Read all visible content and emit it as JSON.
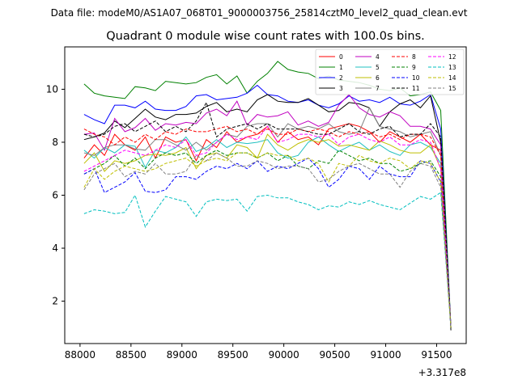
{
  "header": {
    "suptitle": "Data file: modeM0/AS1A07_068T01_9000003756_25814cztM0_level2_quad_clean.evt"
  },
  "chart_data": {
    "type": "line",
    "title": "Quadrant 0 module wise count rates with 100.0s bins.",
    "xlabel": "",
    "ylabel": "",
    "x_offset_label": "+3.317e8",
    "xlim": [
      87850,
      91790
    ],
    "ylim": [
      0.4,
      11.6
    ],
    "xticks": [
      88000,
      88500,
      89000,
      89500,
      90000,
      90500,
      91000,
      91500
    ],
    "xtick_labels": [
      "88000",
      "88500",
      "89000",
      "89500",
      "90000",
      "90500",
      "91000",
      "91500"
    ],
    "yticks": [
      2,
      4,
      6,
      8,
      10
    ],
    "ytick_labels": [
      "2",
      "4",
      "6",
      "8",
      "10"
    ],
    "grid": false,
    "legend_placement": "top-right",
    "x": [
      88040,
      88140,
      88240,
      88340,
      88440,
      88540,
      88640,
      88740,
      88840,
      88940,
      89040,
      89140,
      89240,
      89340,
      89440,
      89540,
      89640,
      89740,
      89840,
      89940,
      90040,
      90140,
      90240,
      90340,
      90440,
      90540,
      90640,
      90740,
      90840,
      90940,
      91040,
      91140,
      91240,
      91340,
      91440,
      91540,
      91640
    ],
    "series": [
      {
        "name": "0",
        "color": "#ff0000",
        "dash": "solid",
        "values": [
          7.4,
          7.9,
          7.5,
          8.3,
          7.9,
          7.7,
          8.2,
          7.4,
          8.2,
          8.0,
          8.1,
          7.3,
          8.1,
          7.8,
          8.4,
          8.0,
          8.2,
          8.3,
          8.6,
          8.0,
          8.4,
          8.1,
          8.2,
          7.9,
          8.5,
          8.6,
          8.7,
          8.6,
          8.4,
          8.0,
          8.4,
          8.2,
          8.0,
          8.3,
          7.9,
          7.7,
          1.0
        ]
      },
      {
        "name": "1",
        "color": "#008000",
        "dash": "solid",
        "values": [
          10.2,
          9.85,
          9.75,
          9.7,
          9.65,
          10.1,
          10.05,
          9.95,
          10.3,
          10.25,
          10.2,
          10.25,
          10.45,
          10.55,
          10.2,
          10.5,
          9.85,
          10.3,
          10.6,
          11.05,
          10.75,
          10.65,
          10.6,
          10.4,
          10.5,
          10.35,
          10.3,
          10.25,
          10.15,
          10.0,
          9.95,
          10.05,
          9.75,
          9.8,
          9.9,
          9.2,
          1.0
        ]
      },
      {
        "name": "2",
        "color": "#0000ff",
        "dash": "solid",
        "values": [
          9.05,
          8.85,
          8.7,
          9.4,
          9.4,
          9.3,
          9.55,
          9.25,
          9.2,
          9.2,
          9.35,
          9.75,
          9.8,
          9.6,
          9.65,
          9.7,
          9.85,
          10.15,
          9.8,
          9.75,
          9.55,
          9.5,
          9.6,
          9.4,
          9.3,
          9.45,
          9.75,
          9.55,
          9.6,
          9.5,
          9.7,
          9.45,
          9.4,
          9.55,
          9.8,
          8.5,
          1.0
        ]
      },
      {
        "name": "3",
        "color": "#000000",
        "dash": "solid",
        "values": [
          8.1,
          8.2,
          8.35,
          8.8,
          8.55,
          8.9,
          9.25,
          8.95,
          8.85,
          9.05,
          9.05,
          9.1,
          9.35,
          9.5,
          9.15,
          9.25,
          9.15,
          9.6,
          9.8,
          9.55,
          9.5,
          9.5,
          9.65,
          9.4,
          9.15,
          9.2,
          9.5,
          9.45,
          9.3,
          8.6,
          9.15,
          9.45,
          9.6,
          9.3,
          9.75,
          8.0,
          0.9
        ]
      },
      {
        "name": "4",
        "color": "#c000c0",
        "dash": "solid",
        "values": [
          8.3,
          8.35,
          7.7,
          8.9,
          8.4,
          8.55,
          8.9,
          8.45,
          8.7,
          8.65,
          8.75,
          8.7,
          9.1,
          9.25,
          9.0,
          9.55,
          8.65,
          9.05,
          8.95,
          9.0,
          9.15,
          8.65,
          8.8,
          8.6,
          8.75,
          9.4,
          9.8,
          9.3,
          9.05,
          8.95,
          9.15,
          9.0,
          8.6,
          8.6,
          8.5,
          7.9,
          1.0
        ]
      },
      {
        "name": "5",
        "color": "#20c0c0",
        "dash": "solid",
        "values": [
          7.7,
          7.4,
          7.8,
          7.6,
          7.9,
          7.85,
          7.05,
          7.7,
          7.6,
          7.8,
          8.2,
          7.65,
          7.8,
          8.1,
          7.8,
          8.0,
          7.95,
          8.0,
          8.1,
          7.6,
          7.4,
          7.5,
          8.0,
          8.2,
          7.9,
          7.65,
          7.85,
          8.0,
          7.7,
          7.9,
          7.65,
          7.5,
          7.9,
          8.0,
          7.8,
          7.2,
          1.0
        ]
      },
      {
        "name": "6",
        "color": "#bfbf00",
        "dash": "solid",
        "values": [
          7.2,
          7.6,
          6.9,
          7.3,
          7.2,
          7.3,
          7.5,
          7.55,
          7.5,
          7.6,
          7.8,
          7.0,
          7.5,
          7.6,
          7.4,
          7.9,
          7.8,
          7.4,
          8.3,
          7.9,
          7.7,
          7.95,
          8.1,
          8.0,
          8.1,
          7.85,
          7.9,
          7.8,
          7.7,
          8.05,
          7.9,
          7.7,
          7.6,
          7.6,
          7.9,
          7.0,
          1.0
        ]
      },
      {
        "name": "7",
        "color": "#808080",
        "dash": "solid",
        "values": [
          7.6,
          7.5,
          7.8,
          7.9,
          7.9,
          7.75,
          7.7,
          8.1,
          8.1,
          7.9,
          7.7,
          8.0,
          7.7,
          8.0,
          8.3,
          8.2,
          8.6,
          8.7,
          8.7,
          8.2,
          8.7,
          8.5,
          8.6,
          8.5,
          8.7,
          8.4,
          8.3,
          8.4,
          9.3,
          8.6,
          8.5,
          8.4,
          8.2,
          8.3,
          8.4,
          7.5,
          1.0
        ]
      },
      {
        "name": "8",
        "color": "#ff0000",
        "dash": "dashed",
        "values": [
          8.5,
          8.3,
          8.2,
          7.9,
          8.2,
          8.0,
          8.3,
          8.1,
          8.4,
          8.3,
          8.5,
          8.4,
          8.4,
          8.5,
          8.6,
          8.4,
          8.5,
          8.3,
          8.5,
          8.3,
          8.3,
          8.5,
          8.4,
          8.5,
          8.4,
          8.2,
          8.4,
          8.3,
          8.4,
          8.2,
          8.3,
          8.1,
          8.3,
          8.3,
          8.2,
          7.5,
          1.0
        ]
      },
      {
        "name": "9",
        "color": "#008000",
        "dash": "dashed",
        "values": [
          6.8,
          7.0,
          7.2,
          7.5,
          7.1,
          7.4,
          7.0,
          7.4,
          7.6,
          7.5,
          7.6,
          7.2,
          7.5,
          7.7,
          7.5,
          7.6,
          7.6,
          7.4,
          7.6,
          7.3,
          7.5,
          7.1,
          7.0,
          7.3,
          7.2,
          7.7,
          7.5,
          7.3,
          7.4,
          7.2,
          7.2,
          6.9,
          7.0,
          7.2,
          7.3,
          6.7,
          1.0
        ]
      },
      {
        "name": "10",
        "color": "#0000ff",
        "dash": "dashed",
        "values": [
          6.8,
          7.0,
          6.1,
          6.3,
          6.5,
          6.85,
          6.15,
          6.1,
          6.2,
          6.7,
          6.7,
          6.6,
          6.9,
          7.1,
          7.0,
          7.2,
          7.0,
          7.3,
          6.9,
          7.1,
          7.0,
          7.2,
          7.4,
          7.0,
          6.3,
          6.6,
          7.1,
          7.0,
          6.6,
          7.1,
          6.8,
          6.7,
          6.7,
          7.3,
          7.2,
          6.5,
          1.0
        ]
      },
      {
        "name": "11",
        "color": "#000000",
        "dash": "dashed",
        "values": [
          8.3,
          8.2,
          8.3,
          8.6,
          8.7,
          8.4,
          8.6,
          8.8,
          8.4,
          8.6,
          8.4,
          8.8,
          9.5,
          8.2,
          8.5,
          8.6,
          8.7,
          8.5,
          8.7,
          8.5,
          8.5,
          8.5,
          8.4,
          8.3,
          8.3,
          8.5,
          8.7,
          8.4,
          8.3,
          8.5,
          8.6,
          8.2,
          8.3,
          8.3,
          8.7,
          8.2,
          1.0
        ]
      },
      {
        "name": "12",
        "color": "#ff00ff",
        "dash": "dashed",
        "values": [
          6.9,
          7.1,
          7.3,
          7.5,
          7.7,
          7.6,
          7.5,
          7.7,
          7.9,
          7.8,
          8.1,
          7.5,
          7.6,
          8.0,
          8.3,
          8.1,
          8.2,
          8.1,
          8.6,
          8.0,
          8.1,
          8.3,
          8.3,
          8.2,
          8.3,
          7.9,
          8.2,
          8.3,
          8.1,
          8.0,
          8.2,
          7.9,
          7.9,
          8.1,
          8.0,
          7.0,
          1.0
        ]
      },
      {
        "name": "13",
        "color": "#00bfbf",
        "dash": "dashed",
        "values": [
          5.3,
          5.45,
          5.4,
          5.3,
          5.35,
          6.0,
          4.8,
          5.4,
          5.95,
          5.85,
          5.75,
          5.2,
          5.75,
          5.85,
          5.8,
          5.85,
          5.4,
          5.95,
          6.0,
          5.9,
          5.9,
          5.75,
          5.65,
          5.45,
          5.6,
          5.55,
          5.75,
          5.65,
          5.8,
          5.65,
          5.55,
          5.45,
          5.7,
          5.95,
          5.85,
          6.1,
          1.0
        ]
      },
      {
        "name": "14",
        "color": "#bfbf00",
        "dash": "dashed",
        "values": [
          6.3,
          7.0,
          6.6,
          6.9,
          7.1,
          7.0,
          6.9,
          7.0,
          7.2,
          7.3,
          7.4,
          7.1,
          7.3,
          7.4,
          7.3,
          7.6,
          7.6,
          7.4,
          7.6,
          7.5,
          7.5,
          7.3,
          7.4,
          7.2,
          6.5,
          7.2,
          7.1,
          7.5,
          7.3,
          7.2,
          7.4,
          7.3,
          7.0,
          7.3,
          7.2,
          6.5,
          1.0
        ]
      },
      {
        "name": "15",
        "color": "#808080",
        "dash": "dashed",
        "values": [
          6.2,
          6.8,
          7.0,
          7.2,
          6.7,
          6.9,
          6.8,
          7.2,
          6.8,
          6.8,
          6.9,
          7.5,
          7.3,
          7.6,
          7.4,
          7.1,
          7.1,
          7.3,
          7.2,
          7.0,
          7.1,
          7.1,
          7.0,
          6.5,
          6.6,
          6.9,
          7.1,
          7.2,
          7.0,
          6.8,
          6.8,
          6.3,
          6.9,
          7.2,
          7.1,
          6.3,
          1.0
        ]
      }
    ]
  }
}
